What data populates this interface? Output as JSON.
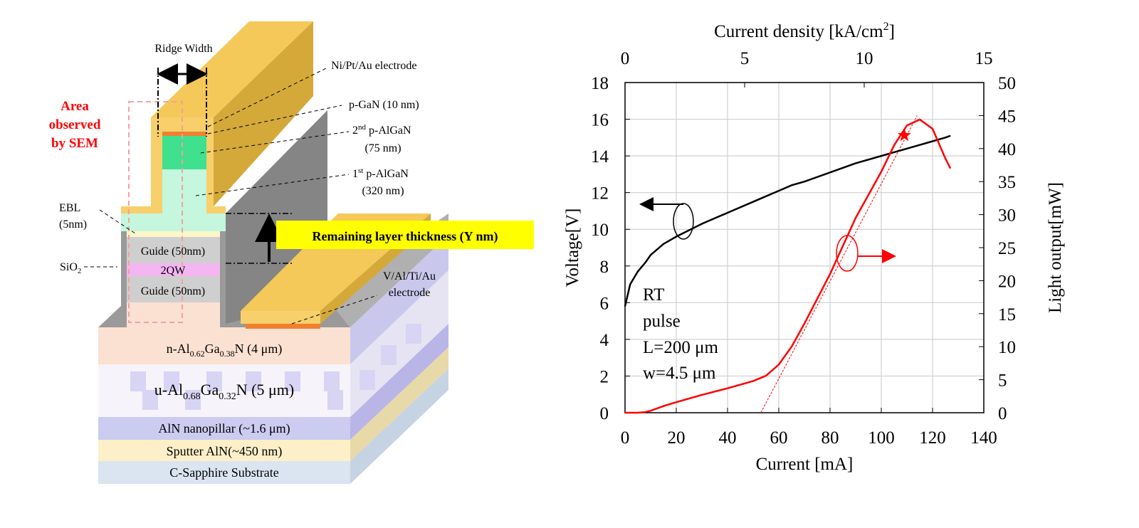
{
  "diagram": {
    "ridge_width": "Ridge Width",
    "sem_area": [
      "Area",
      "observed",
      "by SEM"
    ],
    "top_electrode": "Ni/Pt/Au electrode",
    "p_gan": "p-GaN (10 nm)",
    "second_p_algan": {
      "num": "2",
      "sup": "nd",
      "rest": " p-AlGaN",
      "thickness": "(75 nm)"
    },
    "first_p_algan": {
      "num": "1",
      "sup": "st",
      "rest": " p-AlGaN",
      "thickness": "(320 nm)"
    },
    "ebl": [
      "EBL",
      "(5nm)"
    ],
    "sio2": [
      "SiO",
      "2"
    ],
    "guide_top": "Guide (50nm)",
    "qw": "2QW",
    "guide_bottom": "Guide (50nm)",
    "remaining": "Remaining layer thickness (Y nm)",
    "n_electrode": [
      "V/Al/Ti/Au",
      "electrode"
    ],
    "n_algan": [
      "n-Al",
      "0.62",
      "Ga",
      "0.38",
      "N  (4 μm)"
    ],
    "u_algan": [
      "u-Al",
      "0.68",
      "Ga",
      "0.32",
      "N (5 μm)"
    ],
    "aln_pillar": "AlN nanopillar (~1.6 μm)",
    "sputter_aln": "Sputter AlN(~450 nm)",
    "substrate": "C-Sapphire  Substrate"
  },
  "chart_data": {
    "type": "line",
    "xlabel": "Current [mA]",
    "ylabel": "Voltage[V]",
    "y2label": "Light output[mW]",
    "x2label_parts": [
      "Current density [kA/cm",
      "2",
      "]"
    ],
    "x": [
      0,
      2,
      5,
      8,
      10,
      15,
      20,
      30,
      40,
      50,
      55,
      60,
      65,
      70,
      80,
      90,
      100,
      105,
      110,
      115,
      120,
      125,
      127
    ],
    "series": [
      {
        "name": "Voltage",
        "color": "#000000",
        "values": [
          5.8,
          7.0,
          7.7,
          8.2,
          8.6,
          9.2,
          9.6,
          10.3,
          10.9,
          11.5,
          11.8,
          12.1,
          12.4,
          12.6,
          13.1,
          13.6,
          14.0,
          14.2,
          14.4,
          14.6,
          14.8,
          15.0,
          15.1
        ]
      },
      {
        "name": "Light output",
        "color": "#ff0000",
        "axis": "y2",
        "values": [
          0,
          0,
          0,
          0.1,
          0.3,
          1.0,
          1.6,
          2.7,
          3.7,
          4.8,
          5.6,
          7.3,
          10,
          13.5,
          21,
          29.5,
          36.5,
          40.5,
          43.5,
          44.4,
          43,
          38.5,
          37
        ]
      }
    ],
    "fit_line": {
      "x": [
        53,
        114
      ],
      "values": [
        0,
        45
      ],
      "color": "#ff0000",
      "axis": "y2"
    },
    "marker": {
      "x": 109,
      "value": 42,
      "color": "#ff0000",
      "axis": "y2"
    },
    "annotations": [
      "RT",
      "pulse",
      "L=200 μm",
      "w=4.5 μm"
    ],
    "xlim": [
      0,
      140
    ],
    "xticks": [
      0,
      20,
      40,
      60,
      80,
      100,
      120,
      140
    ],
    "x2lim": [
      0,
      15
    ],
    "x2ticks": [
      0,
      5,
      10,
      15
    ],
    "ylim": [
      0,
      18
    ],
    "yticks": [
      0,
      2,
      4,
      6,
      8,
      10,
      12,
      14,
      16,
      18
    ],
    "y2lim": [
      0,
      50
    ],
    "y2ticks": [
      0,
      5,
      10,
      15,
      20,
      25,
      30,
      35,
      40,
      45,
      50
    ],
    "grid": true
  }
}
